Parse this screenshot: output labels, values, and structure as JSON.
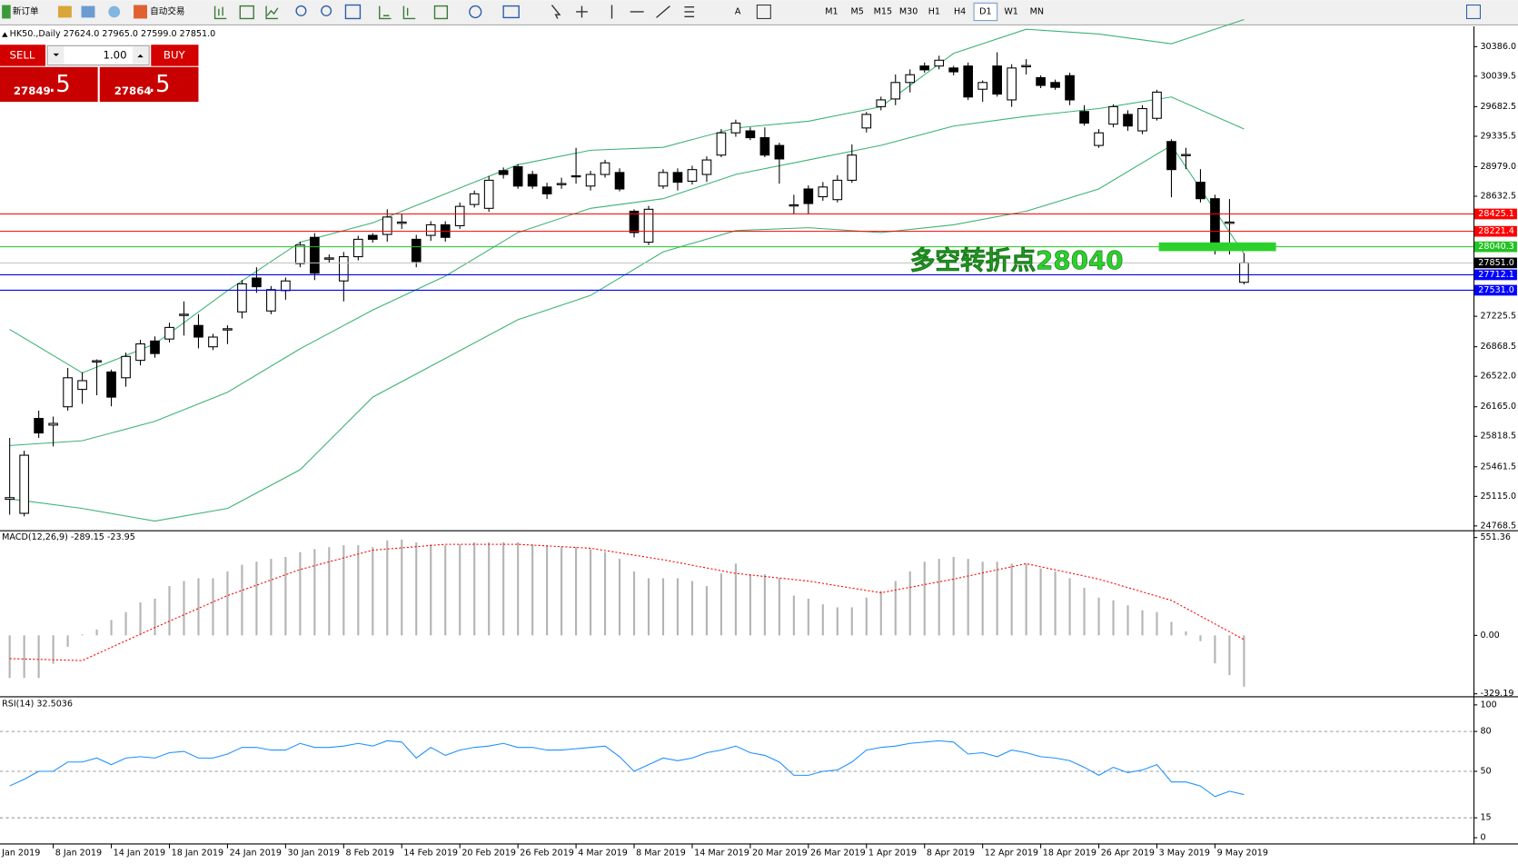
{
  "toolbar": {
    "new_order": "新订单",
    "auto_trading": "自动交易",
    "timeframes": [
      "M1",
      "M5",
      "M15",
      "M30",
      "H1",
      "H4",
      "D1",
      "W1",
      "MN"
    ],
    "active_timeframe": "D1"
  },
  "trade_panel": {
    "sell": "SELL",
    "lots": "1.00",
    "buy": "BUY",
    "bid": "27849",
    "bid_pips": ".5",
    "ask": "27864",
    "ask_pips": ".5"
  },
  "chart_data": [
    {
      "type": "candlestick",
      "title": "HK50.,Daily  27624.0 27965.0 27599.0 27851.0",
      "categories": [
        "Jan 2019",
        null,
        null,
        null,
        "8 Jan 2019",
        null,
        null,
        null,
        "14 Jan 2019",
        null,
        null,
        null,
        "18 Jan 2019",
        null,
        null,
        null,
        "24 Jan 2019",
        null,
        null,
        null,
        "30 Jan 2019",
        null,
        null,
        null,
        "8 Feb 2019",
        null,
        null,
        null,
        "14 Feb 2019",
        null,
        null,
        null,
        "20 Feb 2019",
        null,
        null,
        null,
        "26 Feb 2019",
        null,
        null,
        null,
        "4 Mar 2019",
        null,
        null,
        null,
        "8 Mar 2019",
        null,
        null,
        null,
        "14 Mar 2019",
        null,
        null,
        null,
        "20 Mar 2019",
        null,
        null,
        null,
        "26 Mar 2019",
        null,
        null,
        null,
        "1 Apr 2019",
        null,
        null,
        null,
        "8 Apr 2019",
        null,
        null,
        null,
        "12 Apr 2019",
        null,
        null,
        null,
        "18 Apr 2019",
        null,
        null,
        null,
        "26 Apr 2019",
        null,
        null,
        null,
        "3 May 2019",
        null,
        null,
        null,
        "9 May 2019",
        null
      ],
      "open": [
        25080,
        24916,
        26028,
        25950,
        26165,
        26369,
        26690,
        26573,
        26505,
        26709,
        26936,
        26959,
        27235,
        27118,
        26868,
        27065,
        27277,
        27674,
        27288,
        27527,
        27844,
        28151,
        27895,
        27640,
        27924,
        28174,
        28185,
        28315,
        28128,
        28174,
        28298,
        28287,
        28536,
        28491,
        28933,
        28979,
        28888,
        28741,
        28768,
        28860,
        28752,
        28888,
        28911,
        28457,
        28094,
        28752,
        28911,
        28809,
        28888,
        29115,
        29376,
        29399,
        29319,
        29228,
        28518,
        28718,
        28627,
        28593,
        28820,
        29433,
        29683,
        29773,
        29966,
        30159,
        30159,
        30136,
        30159,
        29887,
        30159,
        29762,
        30150,
        30023,
        29966,
        30046,
        29626,
        29228,
        29478,
        29592,
        29399,
        29546,
        29274,
        29108,
        28797,
        28604,
        28315,
        27624
      ],
      "high": [
        25800,
        25650,
        26120,
        26050,
        26620,
        26570,
        26720,
        26600,
        26800,
        26950,
        26990,
        27150,
        27400,
        27250,
        27020,
        27120,
        27650,
        27800,
        27580,
        27680,
        28100,
        28200,
        27950,
        27980,
        28170,
        28200,
        28480,
        28420,
        28180,
        28340,
        28340,
        28560,
        28700,
        28870,
        28970,
        29010,
        28930,
        28790,
        28850,
        29200,
        28930,
        29060,
        28960,
        28480,
        28520,
        28950,
        28960,
        28990,
        29100,
        29420,
        29530,
        29440,
        29440,
        29260,
        28650,
        28760,
        28800,
        28880,
        29240,
        29620,
        29800,
        30060,
        30120,
        30200,
        30280,
        30160,
        30200,
        29990,
        30320,
        30180,
        30240,
        30050,
        30000,
        30080,
        29700,
        29420,
        29710,
        29640,
        29700,
        29880,
        29300,
        29200,
        28950,
        28650,
        28600,
        27965
      ],
      "low": [
        24900,
        24880,
        25800,
        25700,
        26120,
        26200,
        26300,
        26170,
        26400,
        26650,
        26740,
        26920,
        27000,
        26850,
        26830,
        26900,
        27200,
        27500,
        27250,
        27420,
        27800,
        27650,
        27850,
        27400,
        27880,
        28090,
        28100,
        28250,
        27800,
        28110,
        28100,
        28250,
        28500,
        28450,
        28840,
        28720,
        28720,
        28600,
        28720,
        28780,
        28700,
        28850,
        28690,
        28150,
        28060,
        28720,
        28700,
        28770,
        28800,
        29090,
        29330,
        29290,
        29090,
        28780,
        28420,
        28420,
        28580,
        28560,
        28790,
        29380,
        29640,
        29700,
        29850,
        30080,
        30120,
        30050,
        29760,
        29740,
        29800,
        29680,
        30060,
        29900,
        29880,
        29700,
        29460,
        29200,
        29440,
        29400,
        29360,
        29520,
        28620,
        28950,
        28560,
        27950,
        27950,
        27599
      ],
      "close": [
        25100,
        25597,
        25858,
        25970,
        26505,
        26471,
        26705,
        26278,
        26755,
        26902,
        26789,
        27095,
        27250,
        26982,
        26982,
        27080,
        27606,
        27572,
        27538,
        27640,
        28060,
        27731,
        27910,
        27924,
        28128,
        28128,
        28389,
        28330,
        27867,
        28298,
        28151,
        28514,
        28661,
        28820,
        28888,
        28752,
        28752,
        28661,
        28782,
        28872,
        28888,
        29024,
        28718,
        28207,
        28480,
        28911,
        28797,
        28945,
        29058,
        29376,
        29490,
        29319,
        29115,
        29070,
        28532,
        28547,
        28741,
        28820,
        29115,
        29592,
        29762,
        29966,
        30057,
        30114,
        30227,
        30091,
        29796,
        29966,
        29830,
        30136,
        30165,
        29932,
        29909,
        29762,
        29490,
        29376,
        29683,
        29456,
        29660,
        29853,
        28945,
        29122,
        28604,
        28094,
        28330,
        27851
      ],
      "up_color": "#ffffff",
      "down_color": "#000000",
      "bands": {
        "color": "#3cb371",
        "x": [
          0,
          5,
          10,
          15,
          20,
          25,
          30,
          35,
          40,
          45,
          50,
          55,
          60,
          65,
          70,
          75,
          80,
          85
        ],
        "upper": [
          27072,
          26562,
          26902,
          27526,
          28094,
          28321,
          28661,
          29002,
          29172,
          29206,
          29433,
          29512,
          29682,
          30307,
          30590,
          30534,
          30420,
          30704
        ],
        "middle": [
          25711,
          25767,
          25994,
          26335,
          26845,
          27299,
          27697,
          28207,
          28491,
          28604,
          28888,
          29058,
          29229,
          29455,
          29569,
          29660,
          29796,
          29421
        ],
        "lower": [
          25086,
          24973,
          24825,
          24973,
          25427,
          26278,
          26732,
          27186,
          27470,
          27980,
          28230,
          28264,
          28207,
          28298,
          28457,
          28718,
          29229,
          27958
        ]
      },
      "levels": [
        {
          "value": 28425.1,
          "color": "#ff0000"
        },
        {
          "value": 28221.4,
          "color": "#ff0000"
        },
        {
          "value": 28040.3,
          "color": "#22c322"
        },
        {
          "value": 27851,
          "label": "27851.0",
          "color": "#000000"
        },
        {
          "value": 27712.1,
          "color": "#0000ff"
        },
        {
          "value": 27531,
          "label": "27531.0",
          "color": "#0000ff"
        }
      ],
      "annotation": "多空转折点28040",
      "annotation_color": "#2bd12b",
      "ylim": [
        24723,
        30613
      ],
      "yticks": [
        {
          "value": 30386,
          "label": "30386.0"
        },
        {
          "value": 30039.5,
          "label": "30039.5"
        },
        {
          "value": 29682.5,
          "label": "29682.5"
        },
        {
          "value": 29335.5,
          "label": "29335.5"
        },
        {
          "value": 28979,
          "label": "28979.0"
        },
        {
          "value": 28632.5,
          "label": "28632.5"
        },
        {
          "value": 27225.5,
          "label": "27225.5"
        },
        {
          "value": 26868.5,
          "label": "26868.5"
        },
        {
          "value": 26522,
          "label": "26522.0"
        },
        {
          "value": 26165,
          "label": "26165.0"
        },
        {
          "value": 25818.5,
          "label": "25818.5"
        },
        {
          "value": 25461.5,
          "label": "25461.5"
        },
        {
          "value": 25115,
          "label": "25115.0"
        },
        {
          "value": 24768.5,
          "label": "24768.5"
        }
      ]
    },
    {
      "type": "bar",
      "title": "MACD(12,26,9) -289.15 -23.95",
      "color": "#b4b4b4",
      "values": [
        -240,
        -240,
        -240,
        -160,
        -65,
        5,
        33,
        87,
        131,
        186,
        207,
        278,
        306,
        322,
        322,
        360,
        398,
        415,
        431,
        442,
        469,
        486,
        497,
        508,
        508,
        497,
        535,
        540,
        524,
        513,
        508,
        513,
        524,
        524,
        524,
        524,
        513,
        508,
        497,
        497,
        486,
        469,
        431,
        360,
        322,
        322,
        322,
        306,
        278,
        349,
        404,
        344,
        344,
        322,
        224,
        207,
        175,
        158,
        158,
        213,
        251,
        306,
        360,
        415,
        431,
        442,
        431,
        415,
        415,
        404,
        404,
        377,
        360,
        322,
        268,
        213,
        197,
        169,
        142,
        131,
        76,
        22,
        -33,
        -158,
        -224,
        -289.15
      ],
      "signal": {
        "color": "#ff0000",
        "x": [
          0,
          5,
          10,
          15,
          20,
          25,
          30,
          35,
          40,
          45,
          50,
          55,
          60,
          65,
          70,
          75,
          80,
          85
        ],
        "values": [
          -131,
          -142,
          44,
          224,
          371,
          480,
          513,
          513,
          491,
          426,
          349,
          306,
          240,
          317,
          404,
          317,
          197,
          -23.95
        ]
      },
      "ylim": [
        -338,
        584
      ],
      "yticks": [
        551.36,
        {
          "value": 0,
          "label": "0.00"
        },
        -329.19
      ]
    },
    {
      "type": "line",
      "title": "RSI(14) 32.5036",
      "color": "#1e90ff",
      "values": [
        39,
        44,
        50,
        50,
        57,
        57,
        60,
        55,
        60,
        61,
        60,
        64,
        65,
        60,
        60,
        63,
        68,
        68,
        66,
        66,
        71,
        68,
        68,
        69,
        71,
        69,
        73,
        72,
        60,
        68,
        62,
        66,
        68,
        69,
        71,
        68,
        68,
        66,
        66,
        67,
        68,
        69,
        61,
        50,
        55,
        60,
        58,
        60,
        64,
        66,
        69,
        64,
        62,
        57,
        47,
        47,
        50,
        51,
        57,
        66,
        68,
        69,
        71,
        72,
        73,
        72,
        63,
        64,
        61,
        66,
        64,
        61,
        60,
        58,
        53,
        47,
        53,
        49,
        51,
        55,
        42,
        42,
        39,
        31,
        35,
        32.5036
      ],
      "levels": [
        80,
        50,
        15
      ],
      "ylim": [
        -3.6,
        105
      ],
      "yticks": [
        100,
        80,
        50,
        15,
        0
      ]
    }
  ]
}
